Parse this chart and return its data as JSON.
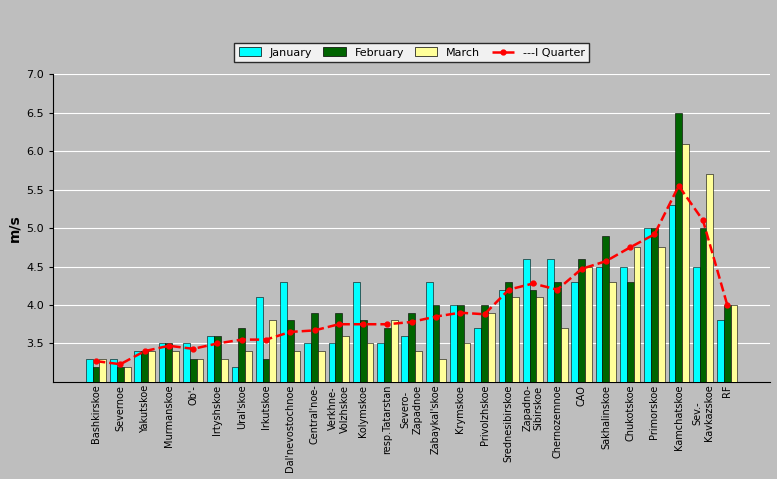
{
  "categories": [
    "Bashkirskoe",
    "Severnoe",
    "Yakutskoe",
    "Murmanskoe",
    "Ob'-",
    "Irtyshskoe",
    "Ural'skoe",
    "Irkutskoe",
    "Dal'nevostochnoe",
    "Central'noe-",
    "Verkhne-\nVolzhskoe",
    "Kolymskoe",
    "resp.Tatarstan",
    "Severo-\nZapadnoe",
    "Zabaykal'skoe",
    "Krymskoe",
    "Privolzhskoe",
    "Srednesibirskoe",
    "Zapadno-\nSibirskoe",
    "Chernozemnoe",
    "CAO",
    "Sakhalinskoe",
    "Chukotskoe",
    "Primorskoe",
    "Kamchatskoe",
    "Sev.-\nKavkazskoe",
    "RF"
  ],
  "january": [
    3.3,
    3.3,
    3.4,
    3.5,
    3.5,
    3.6,
    3.2,
    4.1,
    4.3,
    3.5,
    3.5,
    4.3,
    3.5,
    3.6,
    4.3,
    4.0,
    3.7,
    4.2,
    4.6,
    4.6,
    4.3,
    4.5,
    4.5,
    5.0,
    5.3,
    4.5,
    3.8
  ],
  "february": [
    3.2,
    3.2,
    3.4,
    3.5,
    3.3,
    3.6,
    3.7,
    3.3,
    3.8,
    3.9,
    3.9,
    3.8,
    3.7,
    3.9,
    4.0,
    4.0,
    4.0,
    4.3,
    4.2,
    4.3,
    4.6,
    4.9,
    4.3,
    5.0,
    6.5,
    5.0,
    4.0
  ],
  "march": [
    3.3,
    3.2,
    3.4,
    3.4,
    3.3,
    3.3,
    3.4,
    3.8,
    3.4,
    3.4,
    3.6,
    3.5,
    3.8,
    3.4,
    3.3,
    3.5,
    3.9,
    4.1,
    4.1,
    3.7,
    4.5,
    4.3,
    4.75,
    4.75,
    6.1,
    5.7,
    4.0
  ],
  "quarter": [
    3.27,
    3.23,
    3.4,
    3.47,
    3.43,
    3.5,
    3.55,
    3.55,
    3.65,
    3.67,
    3.75,
    3.75,
    3.75,
    3.78,
    3.85,
    3.9,
    3.88,
    4.2,
    4.28,
    4.2,
    4.47,
    4.57,
    4.75,
    4.92,
    5.55,
    5.1,
    4.0
  ],
  "bar_width": 0.28,
  "bar_bottom": 3.0,
  "colors": {
    "january": "#00FFFF",
    "february": "#006400",
    "march": "#FFFF99",
    "quarter_line": "#FF0000"
  },
  "ylabel": "m/s",
  "ylim": [
    3.0,
    7.0
  ],
  "yticks": [
    3.5,
    4.0,
    4.5,
    5.0,
    5.5,
    6.0,
    6.5,
    7.0
  ],
  "background_color": "#BEBEBE",
  "grid_color": "#FFFFFF",
  "legend_fontsize": 8,
  "tick_fontsize": 7
}
